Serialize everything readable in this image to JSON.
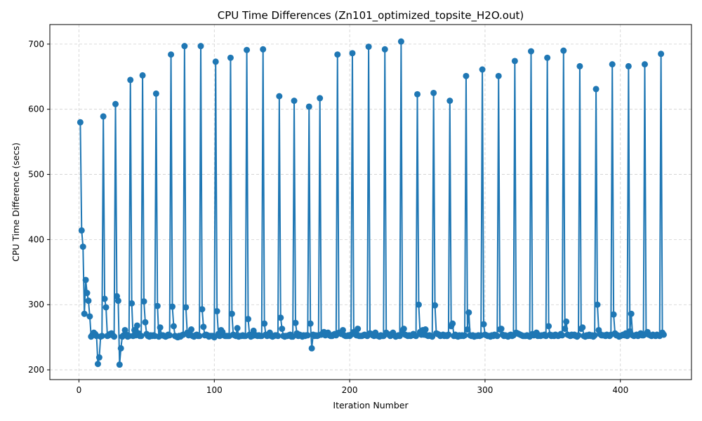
{
  "chart_data": {
    "type": "line",
    "title": "CPU Time Differences (Zn101_optimized_topsite_H2O.out)",
    "xlabel": "Iteration Number",
    "ylabel": "CPU Time Difference (secs)",
    "xlim": [
      -21.5,
      452.5
    ],
    "ylim": [
      185,
      730
    ],
    "xticks": [
      0,
      100,
      200,
      300,
      400
    ],
    "yticks": [
      200,
      300,
      400,
      500,
      600,
      700
    ],
    "grid": true,
    "color": "#1f77b4",
    "series": [
      {
        "marker": "circle",
        "x": [
          1,
          2,
          3,
          4,
          5,
          6,
          7,
          8,
          9,
          10,
          11,
          12,
          13,
          14,
          15,
          16,
          17,
          18,
          19,
          20,
          21,
          22,
          23,
          24,
          25,
          26,
          27,
          28,
          29,
          30,
          31,
          32,
          33,
          34,
          35,
          36,
          37,
          38,
          39,
          40,
          41,
          42,
          43,
          44,
          45,
          46,
          47,
          48,
          49,
          50,
          51,
          52,
          53,
          54,
          55,
          56,
          57,
          58,
          59,
          60,
          61,
          62,
          63,
          64,
          65,
          66,
          67,
          68,
          69,
          70,
          71,
          72,
          73,
          74,
          75,
          76,
          77,
          78,
          79,
          80,
          81,
          82,
          83,
          84,
          85,
          86,
          87,
          88,
          89,
          90,
          91,
          92,
          93,
          94,
          95,
          96,
          97,
          98,
          99,
          100,
          101,
          102,
          103,
          104,
          105,
          106,
          107,
          108,
          109,
          110,
          111,
          112,
          113,
          114,
          115,
          116,
          117,
          118,
          119,
          120,
          121,
          122,
          123,
          124,
          125,
          126,
          127,
          128,
          129,
          130,
          131,
          132,
          133,
          134,
          135,
          136,
          137,
          138,
          139,
          140,
          141,
          142,
          143,
          144,
          145,
          146,
          147,
          148,
          149,
          150,
          151,
          152,
          153,
          154,
          155,
          156,
          157,
          158,
          159,
          160,
          161,
          162,
          163,
          164,
          165,
          166,
          167,
          168,
          169,
          170,
          171,
          172,
          173,
          174,
          175,
          176,
          177,
          178,
          179,
          180,
          181,
          182,
          183,
          184,
          185,
          186,
          187,
          188,
          189,
          190,
          191,
          192,
          193,
          194,
          195,
          196,
          197,
          198,
          199,
          200,
          201,
          202,
          203,
          204,
          205,
          206,
          207,
          208,
          209,
          210,
          211,
          212,
          213,
          214,
          215,
          216,
          217,
          218,
          219,
          220,
          221,
          222,
          223,
          224,
          225,
          226,
          227,
          228,
          229,
          230,
          231,
          232,
          233,
          234,
          235,
          236,
          237,
          238,
          239,
          240,
          241,
          242,
          243,
          244,
          245,
          246,
          247,
          248,
          249,
          250,
          251,
          252,
          253,
          254,
          255,
          256,
          257,
          258,
          259,
          260,
          261,
          262,
          263,
          264,
          265,
          266,
          267,
          268,
          269,
          270,
          271,
          272,
          273,
          274,
          275,
          276,
          277,
          278,
          279,
          280,
          281,
          282,
          283,
          284,
          285,
          286,
          287,
          288,
          289,
          290,
          291,
          292,
          293,
          294,
          295,
          296,
          297,
          298,
          299,
          300,
          301,
          302,
          303,
          304,
          305,
          306,
          307,
          308,
          309,
          310,
          311,
          312,
          313,
          314,
          315,
          316,
          317,
          318,
          319,
          320,
          321,
          322,
          323,
          324,
          325,
          326,
          327,
          328,
          329,
          330,
          331,
          332,
          333,
          334,
          335,
          336,
          337,
          338,
          339,
          340,
          341,
          342,
          343,
          344,
          345,
          346,
          347,
          348,
          349,
          350,
          351,
          352,
          353,
          354,
          355,
          356,
          357,
          358,
          359,
          360,
          361,
          362,
          363,
          364,
          365,
          366,
          367,
          368,
          369,
          370,
          371,
          372,
          373,
          374,
          375,
          376,
          377,
          378,
          379,
          380,
          381,
          382,
          383,
          384,
          385,
          386,
          387,
          388,
          389,
          390,
          391,
          392,
          393,
          394,
          395,
          396,
          397,
          398,
          399,
          400,
          401,
          402,
          403,
          404,
          405,
          406,
          407,
          408,
          409,
          410,
          411,
          412,
          413,
          414,
          415,
          416,
          417,
          418,
          419,
          420,
          421,
          422,
          423,
          424,
          425,
          426,
          427,
          428,
          429,
          430,
          431,
          432
        ],
        "y": [
          580,
          414,
          389,
          286,
          338,
          318,
          306,
          282,
          251,
          254,
          257,
          255,
          252,
          209,
          219,
          251,
          252,
          589,
          309,
          296,
          252,
          253,
          255,
          256,
          253,
          251,
          608,
          313,
          306,
          208,
          233,
          251,
          253,
          261,
          254,
          251,
          252,
          645,
          302,
          252,
          261,
          253,
          268,
          256,
          252,
          252,
          652,
          305,
          273,
          255,
          252,
          251,
          253,
          252,
          253,
          252,
          624,
          298,
          251,
          265,
          253,
          253,
          252,
          251,
          252,
          254,
          253,
          684,
          297,
          267,
          252,
          251,
          250,
          252,
          251,
          253,
          254,
          697,
          296,
          257,
          253,
          254,
          262,
          252,
          251,
          253,
          254,
          252,
          252,
          697,
          293,
          266,
          253,
          254,
          253,
          251,
          252,
          252,
          252,
          250,
          673,
          290,
          255,
          252,
          261,
          258,
          253,
          252,
          252,
          252,
          252,
          679,
          286,
          254,
          253,
          252,
          264,
          251,
          252,
          252,
          253,
          252,
          252,
          691,
          278,
          254,
          251,
          252,
          260,
          253,
          253,
          252,
          253,
          252,
          252,
          692,
          271,
          254,
          252,
          253,
          257,
          252,
          251,
          252,
          253,
          253,
          252,
          620,
          280,
          263,
          252,
          251,
          252,
          252,
          253,
          254,
          251,
          251,
          613,
          272,
          256,
          252,
          254,
          253,
          251,
          253,
          252,
          253,
          253,
          604,
          271,
          233,
          254,
          252,
          253,
          252,
          253,
          617,
          254,
          256,
          258,
          253,
          255,
          257,
          253,
          252,
          252,
          254,
          255,
          253,
          684,
          257,
          256,
          255,
          261,
          253,
          252,
          252,
          253,
          252,
          254,
          686,
          258,
          255,
          253,
          263,
          252,
          252,
          252,
          253,
          254,
          253,
          252,
          696,
          256,
          255,
          253,
          252,
          257,
          253,
          252,
          251,
          253,
          252,
          252,
          692,
          257,
          255,
          254,
          252,
          255,
          257,
          253,
          251,
          252,
          253,
          252,
          704,
          260,
          263,
          254,
          253,
          252,
          253,
          252,
          253,
          255,
          253,
          252,
          623,
          300,
          258,
          254,
          261,
          254,
          262,
          253,
          252,
          253,
          252,
          251,
          625,
          299,
          256,
          255,
          254,
          252,
          253,
          254,
          252,
          253,
          252,
          254,
          613,
          267,
          271,
          252,
          254,
          252,
          251,
          253,
          252,
          253,
          252,
          253,
          651,
          262,
          288,
          253,
          252,
          253,
          251,
          252,
          252,
          253,
          252,
          253,
          661,
          270,
          254,
          253,
          252,
          252,
          251,
          253,
          252,
          254,
          253,
          252,
          651,
          262,
          263,
          254,
          252,
          253,
          252,
          251,
          253,
          254,
          252,
          253,
          674,
          257,
          256,
          255,
          254,
          253,
          252,
          252,
          252,
          253,
          252,
          251,
          689,
          255,
          253,
          254,
          257,
          252,
          253,
          252,
          253,
          253,
          254,
          252,
          679,
          267,
          254,
          252,
          253,
          252,
          254,
          253,
          252,
          253,
          255,
          253,
          690,
          263,
          274,
          254,
          253,
          252,
          254,
          253,
          254,
          252,
          251,
          253,
          666,
          263,
          265,
          252,
          251,
          253,
          252,
          254,
          252,
          253,
          251,
          253,
          631,
          300,
          261,
          255,
          253,
          253,
          253,
          252,
          254,
          253,
          252,
          254,
          669,
          285,
          256,
          253,
          253,
          251,
          252,
          253,
          254,
          253,
          256,
          252,
          666,
          259,
          286,
          253,
          252,
          253,
          254,
          252,
          254,
          256,
          253,
          253,
          669,
          255,
          258,
          254,
          253,
          252,
          254,
          253,
          252,
          254,
          253,
          252,
          685,
          257,
          254
        ]
      }
    ]
  }
}
